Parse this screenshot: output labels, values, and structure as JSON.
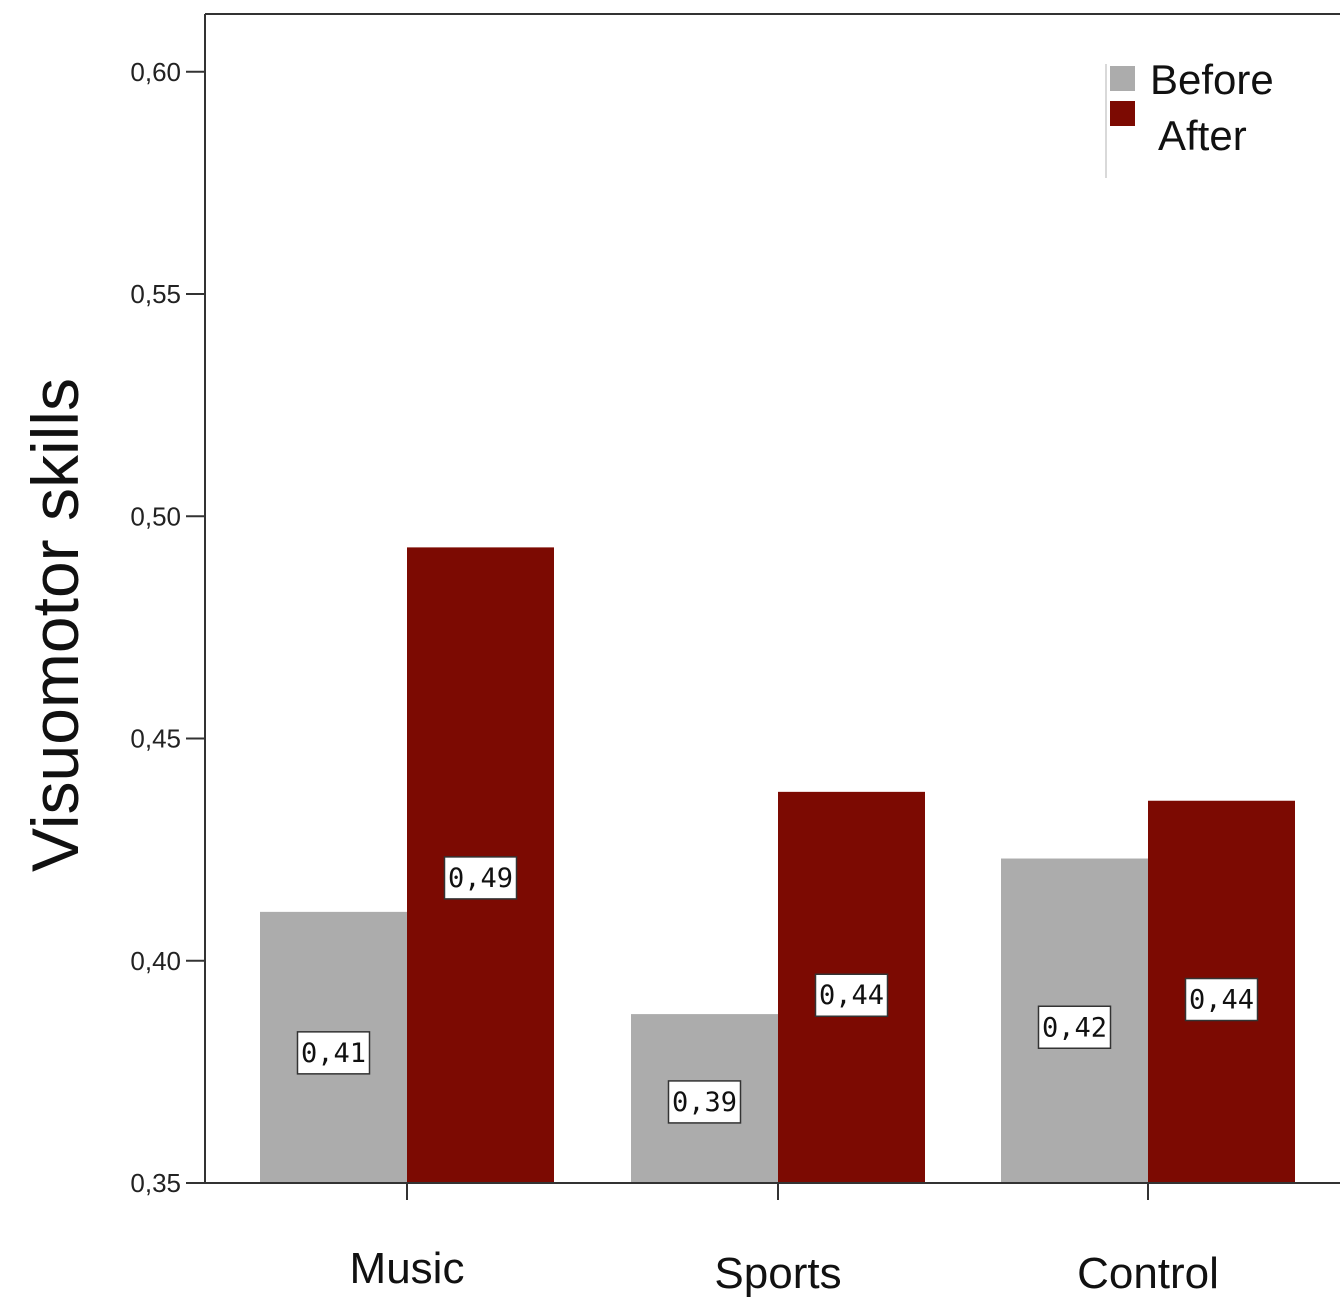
{
  "chart_data": {
    "type": "bar",
    "categories": [
      "Music",
      "Sports",
      "Control"
    ],
    "series": [
      {
        "name": "Before",
        "color": "#acacac",
        "values": [
          0.411,
          0.388,
          0.423
        ],
        "labels": [
          "0,41",
          "0,39",
          "0,42"
        ]
      },
      {
        "name": "After",
        "color": "#7c0a02",
        "values": [
          0.493,
          0.438,
          0.436
        ],
        "labels": [
          "0,49",
          "0,44",
          "0,44"
        ]
      }
    ],
    "ylabel": "Visuomotor skills",
    "ylim": [
      0.35,
      0.613
    ],
    "yticks": [
      0.35,
      0.4,
      0.45,
      0.5,
      0.55,
      0.6
    ],
    "ytick_labels": [
      "0,35",
      "0,40",
      "0,45",
      "0,50",
      "0,55",
      "0,60"
    ],
    "legend_position": "top-right",
    "grid": false
  }
}
